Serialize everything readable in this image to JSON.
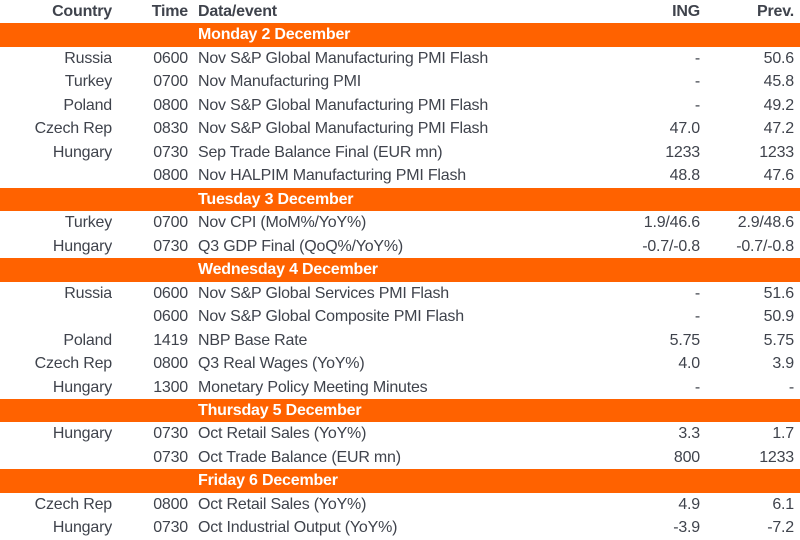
{
  "colors": {
    "accent": "#ff6200",
    "text": "#3f434c",
    "band_text": "#ffffff",
    "background": "#ffffff"
  },
  "header": {
    "country": "Country",
    "time": "Time",
    "event": "Data/event",
    "ing": "ING",
    "prev": "Prev."
  },
  "sections": [
    {
      "day": "Monday 2 December",
      "rows": [
        {
          "country": "Russia",
          "time": "0600",
          "event": "Nov S&P Global Manufacturing PMI Flash",
          "ing": "-",
          "prev": "50.6"
        },
        {
          "country": "Turkey",
          "time": "0700",
          "event": "Nov Manufacturing PMI",
          "ing": "-",
          "prev": "45.8"
        },
        {
          "country": "Poland",
          "time": "0800",
          "event": "Nov S&P Global Manufacturing PMI Flash",
          "ing": "-",
          "prev": "49.2"
        },
        {
          "country": "Czech Rep",
          "time": "0830",
          "event": "Nov S&P Global Manufacturing PMI Flash",
          "ing": "47.0",
          "prev": "47.2"
        },
        {
          "country": "Hungary",
          "time": "0730",
          "event": "Sep Trade Balance Final (EUR mn)",
          "ing": "1233",
          "prev": "1233"
        },
        {
          "country": "",
          "time": "0800",
          "event": "Nov HALPIM Manufacturing PMI Flash",
          "ing": "48.8",
          "prev": "47.6"
        }
      ]
    },
    {
      "day": "Tuesday 3 December",
      "rows": [
        {
          "country": "Turkey",
          "time": "0700",
          "event": "Nov CPI (MoM%/YoY%)",
          "ing": "1.9/46.6",
          "prev": "2.9/48.6"
        },
        {
          "country": "Hungary",
          "time": "0730",
          "event": "Q3 GDP Final (QoQ%/YoY%)",
          "ing": "-0.7/-0.8",
          "prev": "-0.7/-0.8"
        }
      ]
    },
    {
      "day": "Wednesday 4 December",
      "rows": [
        {
          "country": "Russia",
          "time": "0600",
          "event": "Nov S&P Global Services PMI Flash",
          "ing": "-",
          "prev": "51.6"
        },
        {
          "country": "",
          "time": "0600",
          "event": "Nov S&P Global Composite PMI Flash",
          "ing": "-",
          "prev": "50.9"
        },
        {
          "country": "Poland",
          "time": "1419",
          "event": "NBP Base Rate",
          "ing": "5.75",
          "prev": "5.75"
        },
        {
          "country": "Czech Rep",
          "time": "0800",
          "event": "Q3 Real Wages (YoY%)",
          "ing": "4.0",
          "prev": "3.9"
        },
        {
          "country": "Hungary",
          "time": "1300",
          "event": "Monetary Policy Meeting Minutes",
          "ing": "-",
          "prev": "-"
        }
      ]
    },
    {
      "day": "Thursday 5 December",
      "rows": [
        {
          "country": "Hungary",
          "time": "0730",
          "event": "Oct Retail Sales (YoY%)",
          "ing": "3.3",
          "prev": "1.7"
        },
        {
          "country": "",
          "time": "0730",
          "event": "Oct Trade Balance (EUR mn)",
          "ing": "800",
          "prev": "1233"
        }
      ]
    },
    {
      "day": "Friday 6 December",
      "rows": [
        {
          "country": "Czech Rep",
          "time": "0800",
          "event": "Oct Retail Sales (YoY%)",
          "ing": "4.9",
          "prev": "6.1"
        },
        {
          "country": "Hungary",
          "time": "0730",
          "event": "Oct Industrial Output (YoY%)",
          "ing": "-3.9",
          "prev": "-7.2"
        }
      ]
    }
  ]
}
